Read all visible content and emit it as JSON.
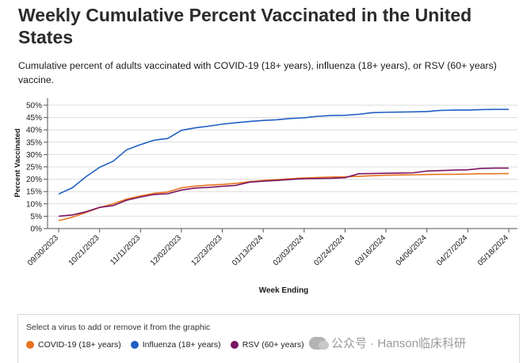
{
  "header": {
    "title": "Weekly Cumulative Percent Vaccinated in the United States",
    "subtitle": "Cumulative percent of adults vaccinated with COVID-19 (18+ years), influenza (18+ years), or RSV (60+ years) vaccine."
  },
  "chart_data": {
    "type": "line",
    "xlabel": "Week Ending",
    "ylabel": "Percent Vaccinated",
    "ylim": [
      0,
      50
    ],
    "yticks": [
      "0%",
      "5%",
      "10%",
      "15%",
      "20%",
      "25%",
      "30%",
      "35%",
      "40%",
      "45%",
      "50%"
    ],
    "xtick_labels": [
      "09/30/2023",
      "10/21/2023",
      "11/11/2023",
      "12/02/2023",
      "12/23/2023",
      "01/13/2024",
      "02/03/2024",
      "02/24/2024",
      "03/16/2024",
      "04/06/2024",
      "04/27/2024",
      "05/18/2024"
    ],
    "grid": true,
    "series": [
      {
        "name": "COVID-19 (18+ years)",
        "color": "#e8731e",
        "values": [
          3.2,
          4.6,
          6.5,
          8.5,
          10.0,
          12.0,
          13.2,
          14.3,
          14.8,
          16.5,
          17.2,
          17.6,
          17.9,
          18.3,
          19.0,
          19.5,
          19.8,
          20.2,
          20.5,
          20.7,
          20.9,
          21.0,
          21.2,
          21.4,
          21.6,
          21.7,
          21.8,
          21.9,
          22.0,
          22.0,
          22.1,
          22.2,
          22.2,
          22.3
        ]
      },
      {
        "name": "Influenza (18+ years)",
        "color": "#1f5fc4",
        "values": [
          14.0,
          16.5,
          21.0,
          24.8,
          27.3,
          32.0,
          34.0,
          35.8,
          36.5,
          39.8,
          40.8,
          41.5,
          42.3,
          42.9,
          43.4,
          43.8,
          44.1,
          44.6,
          44.9,
          45.5,
          45.8,
          45.9,
          46.3,
          47.0,
          47.1,
          47.2,
          47.3,
          47.4,
          47.9,
          48.0,
          48.0,
          48.2,
          48.3,
          48.3
        ]
      },
      {
        "name": "RSV (60+ years)",
        "color": "#7a1563",
        "values": [
          5.0,
          5.5,
          6.8,
          8.6,
          9.3,
          11.5,
          12.8,
          13.8,
          14.1,
          15.6,
          16.4,
          16.7,
          17.1,
          17.5,
          18.8,
          19.2,
          19.5,
          19.9,
          20.2,
          20.3,
          20.4,
          20.6,
          22.2,
          22.3,
          22.4,
          22.5,
          22.6,
          23.3,
          23.5,
          23.7,
          23.8,
          24.4,
          24.5,
          24.5
        ]
      }
    ]
  },
  "legend": {
    "prompt": "Select a virus to add or remove it from the graphic",
    "items": [
      {
        "label": "COVID-19 (18+ years)",
        "color": "#e8731e"
      },
      {
        "label": "Influenza (18+ years)",
        "color": "#1f5fc4"
      },
      {
        "label": "RSV (60+ years)",
        "color": "#7a1563"
      }
    ]
  },
  "watermark": {
    "text": "公众号 · Hanson临床科研"
  }
}
